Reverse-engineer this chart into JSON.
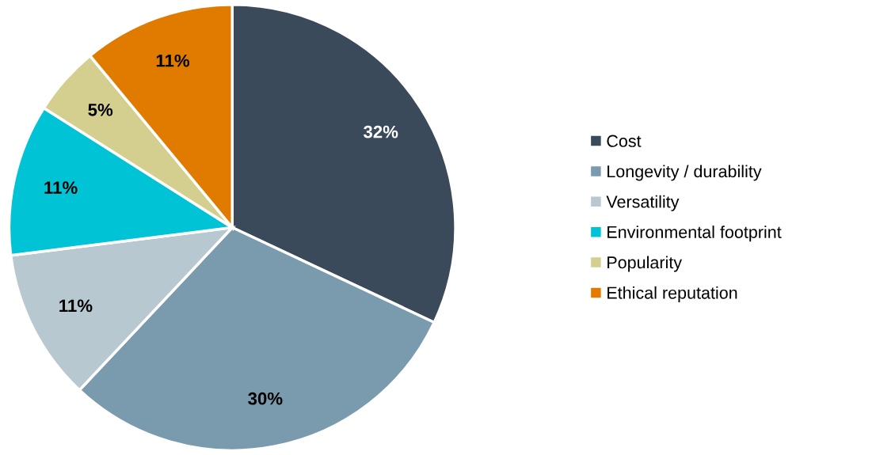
{
  "chart_data": {
    "type": "pie",
    "categories": [
      "Cost",
      "Longevity / durability",
      "Versatility",
      "Environmental footprint",
      "Popularity",
      "Ethical reputation"
    ],
    "values": [
      32,
      30,
      11,
      11,
      5,
      11
    ],
    "colors": [
      "#3b4a5a",
      "#7a9aae",
      "#b8c8d0",
      "#00c4d6",
      "#d4cf8f",
      "#e07b00"
    ],
    "value_labels": [
      "32%",
      "30%",
      "11%",
      "11%",
      "5%",
      "11%"
    ],
    "legend": "right"
  }
}
